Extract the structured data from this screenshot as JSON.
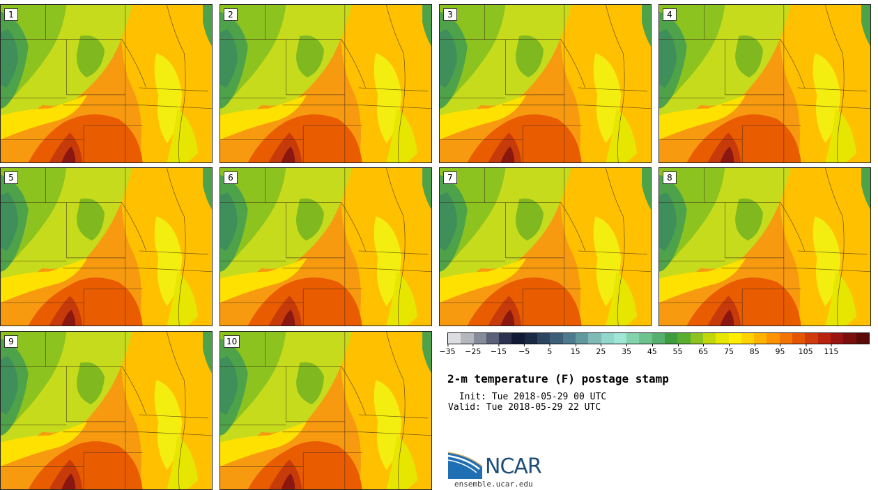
{
  "panels": [
    {
      "label": "1"
    },
    {
      "label": "2"
    },
    {
      "label": "3"
    },
    {
      "label": "4"
    },
    {
      "label": "5"
    },
    {
      "label": "6"
    },
    {
      "label": "7"
    },
    {
      "label": "8"
    },
    {
      "label": "9"
    },
    {
      "label": "10"
    }
  ],
  "colorbar": {
    "colors": [
      "#dcdde0",
      "#b4b7bd",
      "#868c99",
      "#5a6178",
      "#2c3350",
      "#101a35",
      "#1a2a45",
      "#2b4560",
      "#3d5f78",
      "#4d7a8c",
      "#62999f",
      "#7fbab6",
      "#92d7cb",
      "#9fe6d4",
      "#83d3ad",
      "#6dc28e",
      "#56b06f",
      "#3e9c3f",
      "#5aae2f",
      "#8dc31f",
      "#c2d70b",
      "#e6e600",
      "#ffee00",
      "#ffd200",
      "#ffb300",
      "#ff9400",
      "#f37400",
      "#e55500",
      "#d13a0a",
      "#b8220f",
      "#981512",
      "#7a100e",
      "#5a0b07"
    ],
    "ticks": [
      "−35",
      "−25",
      "−15",
      "−5",
      "5",
      "15",
      "25",
      "35",
      "45",
      "55",
      "65",
      "75",
      "85",
      "95",
      "105",
      "115"
    ]
  },
  "title": "2-m temperature (F) postage stamp",
  "init": " Init: Tue 2018-05-29 00 UTC",
  "valid": "Valid: Tue 2018-05-29 22 UTC",
  "logo": {
    "text": "NCAR",
    "accent": "#1f6fb5"
  },
  "website": "ensemble.ucar.edu"
}
